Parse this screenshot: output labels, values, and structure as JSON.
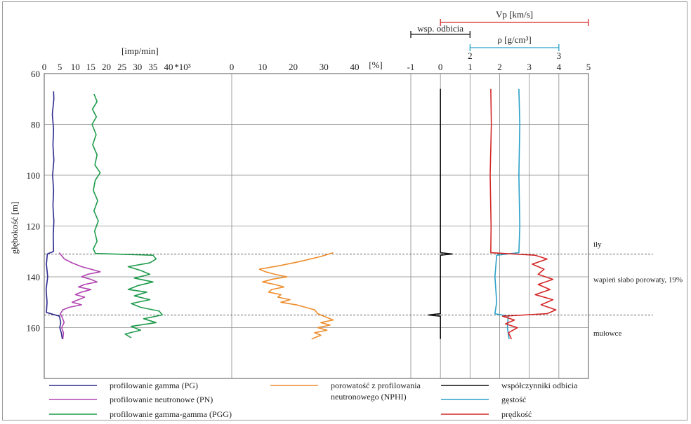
{
  "chart_data": {
    "type": "line",
    "y_axis": {
      "label": "głębokość [m]",
      "ylim": [
        60,
        180
      ],
      "inverted": true,
      "ticks": [
        60,
        80,
        100,
        120,
        140,
        160
      ]
    },
    "tracks": [
      {
        "name": "counts",
        "unit_label": "[imp/min]",
        "xlim": [
          0,
          40
        ],
        "ticks": [
          0,
          5,
          10,
          15,
          20,
          25,
          30,
          35,
          40
        ],
        "tick_suffix_40": "*10³",
        "series": [
          {
            "name": "profilowanie gamma (PG)",
            "color": "#2e2b8f",
            "points": [
              [
                3,
                67
              ],
              [
                3.1,
                70
              ],
              [
                2.6,
                76
              ],
              [
                3,
                82
              ],
              [
                2.8,
                88
              ],
              [
                3.1,
                94
              ],
              [
                2.7,
                100
              ],
              [
                3,
                106
              ],
              [
                2.8,
                112
              ],
              [
                3.1,
                118
              ],
              [
                2.9,
                124
              ],
              [
                3,
                130
              ],
              [
                1,
                131
              ],
              [
                0.7,
                135
              ],
              [
                1.1,
                140
              ],
              [
                0.6,
                145
              ],
              [
                0.9,
                150
              ],
              [
                0.7,
                154
              ],
              [
                4.9,
                155.5
              ],
              [
                5.3,
                158
              ],
              [
                5,
                160
              ],
              [
                5.5,
                162
              ],
              [
                5.8,
                164.5
              ]
            ]
          },
          {
            "name": "profilowanie neutronowe (PN)",
            "color": "#b045b0",
            "points": [
              [
                4.8,
                130.5
              ],
              [
                6.5,
                133
              ],
              [
                9,
                134.5
              ],
              [
                12,
                136
              ],
              [
                15,
                137
              ],
              [
                18,
                138
              ],
              [
                14,
                139
              ],
              [
                12,
                140
              ],
              [
                15,
                141
              ],
              [
                17,
                142
              ],
              [
                13,
                143
              ],
              [
                11,
                144
              ],
              [
                15,
                145
              ],
              [
                12,
                146
              ],
              [
                10,
                147
              ],
              [
                13,
                148
              ],
              [
                11,
                149
              ],
              [
                9,
                150
              ],
              [
                12,
                151
              ],
              [
                8,
                152
              ],
              [
                6,
                153
              ],
              [
                5.2,
                154.5
              ],
              [
                5.8,
                156
              ],
              [
                6.4,
                158
              ],
              [
                5.6,
                160
              ],
              [
                6.2,
                162
              ],
              [
                6,
                164.5
              ]
            ]
          },
          {
            "name": "profilowanie gamma-gamma (PGG)",
            "color": "#1e9b4c",
            "points": [
              [
                16,
                68
              ],
              [
                17,
                71
              ],
              [
                15.5,
                74
              ],
              [
                16.8,
                77
              ],
              [
                15.4,
                80
              ],
              [
                16.7,
                84
              ],
              [
                15.6,
                88
              ],
              [
                17,
                92
              ],
              [
                16.3,
                96
              ],
              [
                18,
                99
              ],
              [
                16.4,
                102
              ],
              [
                15.8,
                106
              ],
              [
                17.2,
                110
              ],
              [
                16,
                114
              ],
              [
                17.4,
                118
              ],
              [
                16.2,
                122
              ],
              [
                17,
                126
              ],
              [
                15.8,
                129
              ],
              [
                16.5,
                130.8
              ],
              [
                35,
                131.5
              ],
              [
                36,
                133
              ],
              [
                34,
                134.5
              ],
              [
                27,
                136
              ],
              [
                31,
                137.5
              ],
              [
                34,
                139
              ],
              [
                29,
                140.5
              ],
              [
                35,
                142
              ],
              [
                30,
                143.5
              ],
              [
                27,
                145
              ],
              [
                33,
                146
              ],
              [
                29,
                147.5
              ],
              [
                34,
                149
              ],
              [
                28,
                150.5
              ],
              [
                31,
                152
              ],
              [
                37,
                153.5
              ],
              [
                38,
                155
              ],
              [
                32,
                156.5
              ],
              [
                36,
                158
              ],
              [
                28,
                159.5
              ],
              [
                31,
                161
              ],
              [
                26,
                162.5
              ],
              [
                28,
                164
              ]
            ]
          }
        ]
      },
      {
        "name": "porosity",
        "unit_label": "[%]",
        "xlim": [
          0,
          40
        ],
        "ticks": [
          0,
          10,
          20,
          30,
          40
        ],
        "series": [
          {
            "name": "porowatość z profilowania neutronowego (NPHI)",
            "color": "#ee8c2a",
            "points": [
              [
                33,
                130.5
              ],
              [
                29,
                132
              ],
              [
                22,
                134
              ],
              [
                16,
                135.5
              ],
              [
                9,
                137
              ],
              [
                11,
                138
              ],
              [
                14,
                139
              ],
              [
                18,
                140
              ],
              [
                13,
                141
              ],
              [
                10,
                142
              ],
              [
                14,
                143
              ],
              [
                17,
                144
              ],
              [
                13,
                145
              ],
              [
                12,
                146
              ],
              [
                16,
                147
              ],
              [
                15,
                148
              ],
              [
                19,
                149
              ],
              [
                16,
                150
              ],
              [
                21,
                151
              ],
              [
                24,
                152
              ],
              [
                27,
                153
              ],
              [
                28,
                154.5
              ],
              [
                33,
                157
              ],
              [
                29,
                158
              ],
              [
                32,
                159
              ],
              [
                28,
                160
              ],
              [
                31,
                161
              ],
              [
                27,
                162
              ],
              [
                29,
                163
              ],
              [
                26,
                164.5
              ]
            ]
          }
        ]
      },
      {
        "name": "logs",
        "xlim": [
          -1,
          5
        ],
        "ticks": [
          -1,
          0,
          1,
          2,
          3,
          4,
          5
        ],
        "series": [
          {
            "name": "współczynniki odbicia",
            "color": "#111111",
            "points": [
              [
                0,
                66
              ],
              [
                0,
                100
              ],
              [
                0,
                130.5
              ],
              [
                0.4,
                131
              ],
              [
                0,
                131.5
              ],
              [
                0,
                154.5
              ],
              [
                -0.4,
                155
              ],
              [
                0,
                155.5
              ],
              [
                0,
                164.5
              ]
            ]
          },
          {
            "name": "gęstość",
            "color": "#2aa0c8",
            "scale": {
              "min": 2,
              "max": 3
            },
            "points": [
              [
                2.55,
                66
              ],
              [
                2.56,
                80
              ],
              [
                2.55,
                100
              ],
              [
                2.56,
                120
              ],
              [
                2.55,
                130.5
              ],
              [
                2.3,
                131.5
              ],
              [
                2.28,
                140
              ],
              [
                2.3,
                150
              ],
              [
                2.28,
                154.5
              ],
              [
                2.43,
                155.5
              ],
              [
                2.42,
                160
              ],
              [
                2.44,
                164.5
              ]
            ]
          },
          {
            "name": "prędkość",
            "color": "#d42828",
            "unit": "km/s",
            "points": [
              [
                1.7,
                66
              ],
              [
                1.72,
                80
              ],
              [
                1.68,
                100
              ],
              [
                1.71,
                120
              ],
              [
                1.7,
                130.5
              ],
              [
                3.2,
                131.5
              ],
              [
                3.6,
                133
              ],
              [
                3.1,
                135
              ],
              [
                3.5,
                137
              ],
              [
                3.3,
                139
              ],
              [
                3.8,
                141
              ],
              [
                3.3,
                143
              ],
              [
                3.7,
                145
              ],
              [
                3.2,
                147
              ],
              [
                3.8,
                149
              ],
              [
                3.4,
                151
              ],
              [
                3.9,
                153
              ],
              [
                3.6,
                154.5
              ],
              [
                2.1,
                155.5
              ],
              [
                2.5,
                157
              ],
              [
                2.2,
                158.5
              ],
              [
                2.6,
                160
              ],
              [
                2.3,
                162
              ],
              [
                2.4,
                164.5
              ]
            ]
          }
        ]
      }
    ],
    "horizontal_lines": [
      131,
      155
    ],
    "annotations": [
      {
        "text": "iły",
        "depth": 127
      },
      {
        "text": "wapień słabo porowaty, 19%",
        "depth": 141
      },
      {
        "text": "mułowce",
        "depth": 162
      }
    ],
    "top_scales": {
      "vp": {
        "label": "Vp [km/s]",
        "range": [
          0,
          5
        ],
        "color": "#d42828"
      },
      "wsp": {
        "label": "wsp. odbicia",
        "range": [
          -1,
          1
        ],
        "color": "#111111"
      },
      "rho": {
        "label": "ρ [g/cm³]",
        "range": [
          2,
          3
        ],
        "ticks": [
          "2",
          "3"
        ],
        "color": "#2aa0c8"
      }
    },
    "legend": [
      {
        "label": "profilowanie gamma (PG)",
        "color": "#2e2b8f"
      },
      {
        "label": "profilowanie neutronowe (PN)",
        "color": "#b045b0"
      },
      {
        "label": "profilowanie gamma-gamma (PGG)",
        "color": "#1e9b4c"
      },
      {
        "label": "porowatość z profilowania",
        "label2": "neutronowego (NPHI)",
        "color": "#ee8c2a"
      },
      {
        "label": "współczynniki odbicia",
        "color": "#111111"
      },
      {
        "label": "gęstość",
        "color": "#2aa0c8"
      },
      {
        "label": "prędkość",
        "color": "#d42828"
      }
    ]
  }
}
